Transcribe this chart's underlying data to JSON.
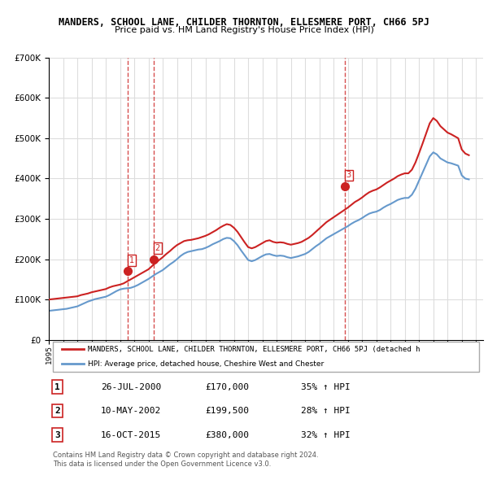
{
  "title": "MANDERS, SCHOOL LANE, CHILDER THORNTON, ELLESMERE PORT, CH66 5PJ",
  "subtitle": "Price paid vs. HM Land Registry's House Price Index (HPI)",
  "ylim": [
    0,
    700000
  ],
  "yticks": [
    0,
    100000,
    200000,
    300000,
    400000,
    500000,
    600000,
    700000
  ],
  "ytick_labels": [
    "£0",
    "£100K",
    "£200K",
    "£300K",
    "£400K",
    "£500K",
    "£600K",
    "£700K"
  ],
  "hpi_color": "#6699cc",
  "price_color": "#cc2222",
  "sale_color": "#cc2222",
  "grid_color": "#dddddd",
  "background_color": "#ffffff",
  "sale_dates": [
    "2000-07-26",
    "2002-05-10",
    "2015-10-16"
  ],
  "sale_prices": [
    170000,
    199500,
    380000
  ],
  "sale_labels": [
    "1",
    "2",
    "3"
  ],
  "legend_price_label": "MANDERS, SCHOOL LANE, CHILDER THORNTON, ELLESMERE PORT, CH66 5PJ (detached h",
  "legend_hpi_label": "HPI: Average price, detached house, Cheshire West and Chester",
  "table_data": [
    [
      "1",
      "26-JUL-2000",
      "£170,000",
      "35% ↑ HPI"
    ],
    [
      "2",
      "10-MAY-2002",
      "£199,500",
      "28% ↑ HPI"
    ],
    [
      "3",
      "16-OCT-2015",
      "£380,000",
      "32% ↑ HPI"
    ]
  ],
  "footer": "Contains HM Land Registry data © Crown copyright and database right 2024.\nThis data is licensed under the Open Government Licence v3.0.",
  "hpi_data_x": [
    1995.0,
    1995.25,
    1995.5,
    1995.75,
    1996.0,
    1996.25,
    1996.5,
    1996.75,
    1997.0,
    1997.25,
    1997.5,
    1997.75,
    1998.0,
    1998.25,
    1998.5,
    1998.75,
    1999.0,
    1999.25,
    1999.5,
    1999.75,
    2000.0,
    2000.25,
    2000.5,
    2000.75,
    2001.0,
    2001.25,
    2001.5,
    2001.75,
    2002.0,
    2002.25,
    2002.5,
    2002.75,
    2003.0,
    2003.25,
    2003.5,
    2003.75,
    2004.0,
    2004.25,
    2004.5,
    2004.75,
    2005.0,
    2005.25,
    2005.5,
    2005.75,
    2006.0,
    2006.25,
    2006.5,
    2006.75,
    2007.0,
    2007.25,
    2007.5,
    2007.75,
    2008.0,
    2008.25,
    2008.5,
    2008.75,
    2009.0,
    2009.25,
    2009.5,
    2009.75,
    2010.0,
    2010.25,
    2010.5,
    2010.75,
    2011.0,
    2011.25,
    2011.5,
    2011.75,
    2012.0,
    2012.25,
    2012.5,
    2012.75,
    2013.0,
    2013.25,
    2013.5,
    2013.75,
    2014.0,
    2014.25,
    2014.5,
    2014.75,
    2015.0,
    2015.25,
    2015.5,
    2015.75,
    2016.0,
    2016.25,
    2016.5,
    2016.75,
    2017.0,
    2017.25,
    2017.5,
    2017.75,
    2018.0,
    2018.25,
    2018.5,
    2018.75,
    2019.0,
    2019.25,
    2019.5,
    2019.75,
    2020.0,
    2020.25,
    2020.5,
    2020.75,
    2021.0,
    2021.25,
    2021.5,
    2021.75,
    2022.0,
    2022.25,
    2022.5,
    2022.75,
    2023.0,
    2023.25,
    2023.5,
    2023.75,
    2024.0,
    2024.25,
    2024.5
  ],
  "hpi_data_y": [
    72000,
    73000,
    74000,
    75000,
    76000,
    77000,
    79000,
    81000,
    83000,
    87000,
    91000,
    95000,
    98000,
    101000,
    103000,
    105000,
    107000,
    111000,
    116000,
    121000,
    125000,
    127000,
    128000,
    129000,
    132000,
    136000,
    141000,
    146000,
    151000,
    157000,
    163000,
    168000,
    173000,
    180000,
    187000,
    193000,
    200000,
    208000,
    214000,
    218000,
    220000,
    222000,
    224000,
    225000,
    228000,
    232000,
    237000,
    241000,
    245000,
    250000,
    253000,
    252000,
    245000,
    235000,
    222000,
    210000,
    198000,
    195000,
    198000,
    203000,
    208000,
    212000,
    213000,
    210000,
    208000,
    209000,
    208000,
    205000,
    203000,
    205000,
    207000,
    210000,
    213000,
    218000,
    225000,
    232000,
    238000,
    245000,
    252000,
    257000,
    262000,
    267000,
    272000,
    277000,
    282000,
    288000,
    293000,
    297000,
    302000,
    308000,
    313000,
    316000,
    318000,
    322000,
    328000,
    333000,
    337000,
    342000,
    347000,
    350000,
    352000,
    352000,
    360000,
    375000,
    395000,
    415000,
    435000,
    455000,
    465000,
    460000,
    450000,
    445000,
    440000,
    438000,
    435000,
    432000,
    408000,
    400000,
    398000
  ],
  "price_line_x": [
    1995.0,
    1995.25,
    1995.5,
    1995.75,
    1996.0,
    1996.25,
    1996.5,
    1996.75,
    1997.0,
    1997.25,
    1997.5,
    1997.75,
    1998.0,
    1998.25,
    1998.5,
    1998.75,
    1999.0,
    1999.25,
    1999.5,
    1999.75,
    2000.0,
    2000.25,
    2000.5,
    2000.75,
    2001.0,
    2001.25,
    2001.5,
    2001.75,
    2002.0,
    2002.25,
    2002.5,
    2002.75,
    2003.0,
    2003.25,
    2003.5,
    2003.75,
    2004.0,
    2004.25,
    2004.5,
    2004.75,
    2005.0,
    2005.25,
    2005.5,
    2005.75,
    2006.0,
    2006.25,
    2006.5,
    2006.75,
    2007.0,
    2007.25,
    2007.5,
    2007.75,
    2008.0,
    2008.25,
    2008.5,
    2008.75,
    2009.0,
    2009.25,
    2009.5,
    2009.75,
    2010.0,
    2010.25,
    2010.5,
    2010.75,
    2011.0,
    2011.25,
    2011.5,
    2011.75,
    2012.0,
    2012.25,
    2012.5,
    2012.75,
    2013.0,
    2013.25,
    2013.5,
    2013.75,
    2014.0,
    2014.25,
    2014.5,
    2014.75,
    2015.0,
    2015.25,
    2015.5,
    2015.75,
    2016.0,
    2016.25,
    2016.5,
    2016.75,
    2017.0,
    2017.25,
    2017.5,
    2017.75,
    2018.0,
    2018.25,
    2018.5,
    2018.75,
    2019.0,
    2019.25,
    2019.5,
    2019.75,
    2020.0,
    2020.25,
    2020.5,
    2020.75,
    2021.0,
    2021.25,
    2021.5,
    2021.75,
    2022.0,
    2022.25,
    2022.5,
    2022.75,
    2023.0,
    2023.25,
    2023.5,
    2023.75,
    2024.0,
    2024.25,
    2024.5
  ],
  "price_line_y": [
    100000,
    101000,
    102000,
    103000,
    104000,
    105000,
    106000,
    107000,
    108000,
    111000,
    113000,
    115000,
    118000,
    120000,
    122000,
    124000,
    126000,
    130000,
    133000,
    135000,
    137000,
    140000,
    145000,
    150000,
    155000,
    160000,
    165000,
    170000,
    175000,
    183000,
    191000,
    198000,
    205000,
    213000,
    220000,
    228000,
    235000,
    240000,
    245000,
    247000,
    248000,
    250000,
    252000,
    255000,
    258000,
    262000,
    267000,
    272000,
    278000,
    283000,
    287000,
    285000,
    278000,
    268000,
    255000,
    242000,
    230000,
    227000,
    230000,
    235000,
    240000,
    245000,
    247000,
    243000,
    241000,
    242000,
    241000,
    238000,
    236000,
    238000,
    240000,
    243000,
    248000,
    253000,
    260000,
    268000,
    276000,
    284000,
    292000,
    298000,
    304000,
    310000,
    316000,
    322000,
    328000,
    335000,
    342000,
    347000,
    353000,
    360000,
    366000,
    370000,
    373000,
    378000,
    384000,
    390000,
    395000,
    400000,
    406000,
    410000,
    413000,
    413000,
    422000,
    440000,
    463000,
    487000,
    512000,
    537000,
    550000,
    543000,
    530000,
    522000,
    514000,
    510000,
    505000,
    500000,
    472000,
    462000,
    458000
  ]
}
